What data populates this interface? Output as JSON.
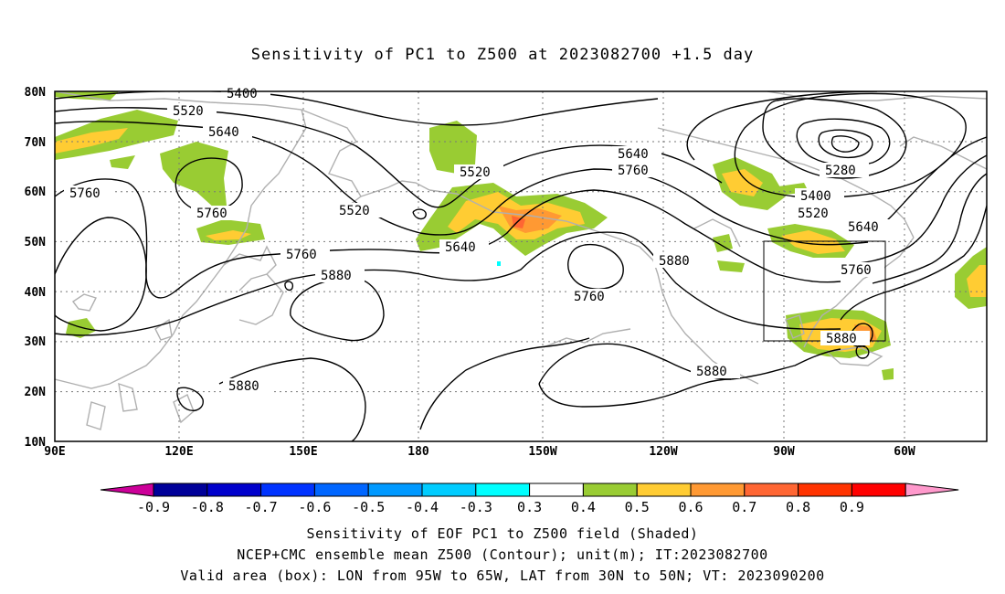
{
  "title": "Sensitivity of PC1 to Z500 at 2023082700 +1.5 day",
  "lat_labels": [
    "80N",
    "70N",
    "60N",
    "50N",
    "40N",
    "30N",
    "20N",
    "10N"
  ],
  "lon_labels": [
    "90E",
    "120E",
    "150E",
    "180",
    "150W",
    "120W",
    "90W",
    "60W"
  ],
  "contour_labels": [
    {
      "text": "5400"
    },
    {
      "text": "5520"
    },
    {
      "text": "5640"
    },
    {
      "text": "5760"
    },
    {
      "text": "5760"
    },
    {
      "text": "5520"
    },
    {
      "text": "5520"
    },
    {
      "text": "5640"
    },
    {
      "text": "5760"
    },
    {
      "text": "5880"
    },
    {
      "text": "5640"
    },
    {
      "text": "5760"
    },
    {
      "text": "5760"
    },
    {
      "text": "5880"
    },
    {
      "text": "5880"
    },
    {
      "text": "5280"
    },
    {
      "text": "5400"
    },
    {
      "text": "5520"
    },
    {
      "text": "5640"
    },
    {
      "text": "5760"
    },
    {
      "text": "5880"
    },
    {
      "text": "5880"
    }
  ],
  "colorbar": {
    "labels": [
      "-0.9",
      "-0.8",
      "-0.7",
      "-0.6",
      "-0.5",
      "-0.4",
      "-0.3",
      "0.3",
      "0.4",
      "0.5",
      "0.6",
      "0.7",
      "0.8",
      "0.9"
    ],
    "colors": [
      "#cc0099",
      "#000099",
      "#0000cc",
      "#0033ff",
      "#0066ff",
      "#0099ff",
      "#00ccff",
      "#00ffff",
      "#ffffff",
      "#99cc33",
      "#ffcc33",
      "#ff9933",
      "#ff6633",
      "#ff3300",
      "#ff0000",
      "#ff99cc"
    ]
  },
  "footer": [
    "Sensitivity of EOF PC1 to Z500 field (Shaded)",
    "NCEP+CMC ensemble mean Z500 (Contour); unit(m); IT:2023082700",
    "Valid area (box): LON from 95W to 65W, LAT from 30N to 50N; VT: 2023090200"
  ]
}
